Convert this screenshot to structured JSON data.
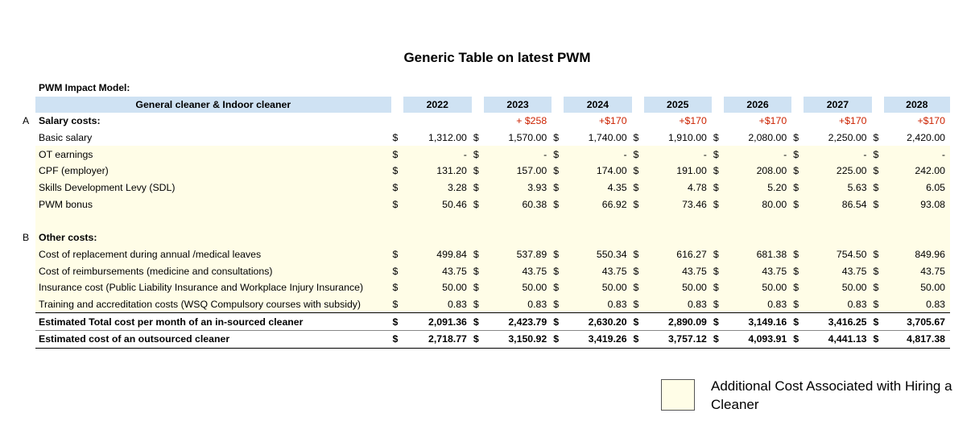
{
  "title": "Generic Table on latest PWM",
  "model_label": "PWM Impact Model:",
  "header": {
    "label": "General cleaner & Indoor cleaner",
    "years": [
      "2022",
      "2023",
      "2024",
      "2025",
      "2026",
      "2027",
      "2028"
    ]
  },
  "section_a": {
    "letter": "A",
    "label": "Salary costs:",
    "increments": [
      "",
      "+ $258",
      "+$170",
      "+$170",
      "+$170",
      "+$170",
      "+$170"
    ]
  },
  "salary_rows": [
    {
      "label": "Basic salary",
      "values": [
        "1,312.00",
        "1,570.00",
        "1,740.00",
        "1,910.00",
        "2,080.00",
        "2,250.00",
        "2,420.00"
      ]
    },
    {
      "label": "OT earnings",
      "values": [
        "-",
        "-",
        "-",
        "-",
        "-",
        "-",
        "-"
      ]
    },
    {
      "label": "CPF (employer)",
      "values": [
        "131.20",
        "157.00",
        "174.00",
        "191.00",
        "208.00",
        "225.00",
        "242.00"
      ]
    },
    {
      "label": "Skills Development Levy (SDL)",
      "values": [
        "3.28",
        "3.93",
        "4.35",
        "4.78",
        "5.20",
        "5.63",
        "6.05"
      ]
    },
    {
      "label": "PWM bonus",
      "values": [
        "50.46",
        "60.38",
        "66.92",
        "73.46",
        "80.00",
        "86.54",
        "93.08"
      ]
    }
  ],
  "section_b": {
    "letter": "B",
    "label": "Other costs:"
  },
  "other_rows": [
    {
      "label": "Cost of replacement during annual /medical leaves",
      "values": [
        "499.84",
        "537.89",
        "550.34",
        "616.27",
        "681.38",
        "754.50",
        "849.96"
      ]
    },
    {
      "label": "Cost of reimbursements (medicine and consultations)",
      "values": [
        "43.75",
        "43.75",
        "43.75",
        "43.75",
        "43.75",
        "43.75",
        "43.75"
      ]
    },
    {
      "label": "Insurance cost (Public Liability Insurance and Workplace Injury Insurance)",
      "values": [
        "50.00",
        "50.00",
        "50.00",
        "50.00",
        "50.00",
        "50.00",
        "50.00"
      ]
    },
    {
      "label": "Training and accreditation costs (WSQ Compulsory courses with subsidy)",
      "values": [
        "0.83",
        "0.83",
        "0.83",
        "0.83",
        "0.83",
        "0.83",
        "0.83"
      ]
    }
  ],
  "total_rows": [
    {
      "label": "Estimated Total cost per month of an in-sourced cleaner",
      "values": [
        "2,091.36",
        "2,423.79",
        "2,630.20",
        "2,890.09",
        "3,149.16",
        "3,416.25",
        "3,705.67"
      ]
    },
    {
      "label": "Estimated cost of an outsourced cleaner",
      "values": [
        "2,718.77",
        "3,150.92",
        "3,419.26",
        "3,757.12",
        "4,093.91",
        "4,441.13",
        "4,817.38"
      ]
    }
  ],
  "currency_symbol": "$",
  "legend": {
    "text": "Additional Cost Associated with Hiring a Cleaner",
    "color": "#fffde7"
  }
}
